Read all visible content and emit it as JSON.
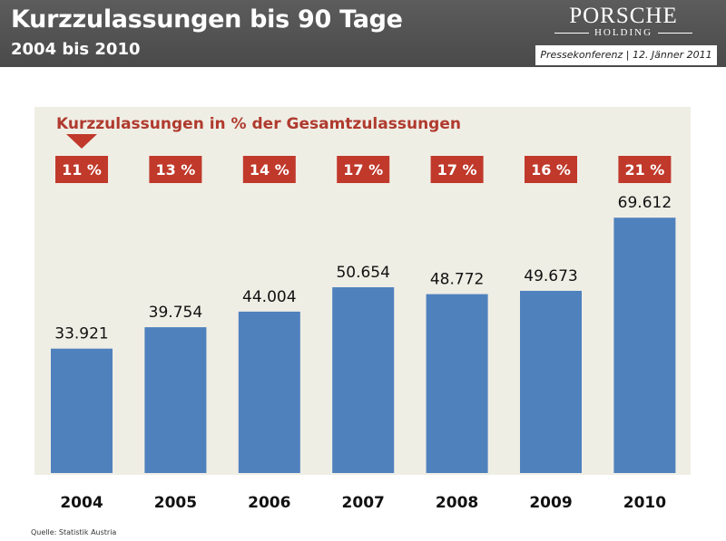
{
  "header": {
    "title": "Kurzzulassungen bis 90 Tage",
    "subtitle": "2004 bis 2010",
    "logo_main": "PORSCHE",
    "logo_sub": "HOLDING",
    "press_info": "Pressekonferenz | 12. Jänner 2011"
  },
  "colors": {
    "bar": "#4f81bd",
    "badge": "#c0392b",
    "header_bg": "#555555",
    "chart_bg": "#efeee5"
  },
  "chart_data": {
    "type": "bar",
    "categories": [
      "2004",
      "2005",
      "2006",
      "2007",
      "2008",
      "2009",
      "2010"
    ],
    "values": [
      33921,
      39754,
      44004,
      50654,
      48772,
      49673,
      69612
    ],
    "value_labels": [
      "33.921",
      "39.754",
      "44.004",
      "50.654",
      "48.772",
      "49.673",
      "69.612"
    ],
    "annotation": "Kurzzulassungen in % der Gesamtzulassungen",
    "percent_labels": [
      "11 %",
      "13 %",
      "14 %",
      "17 %",
      "17 %",
      "16 %",
      "21 %"
    ],
    "ylim": [
      0,
      84000
    ],
    "grid": false,
    "legend": "none"
  },
  "footer": {
    "source": "Quelle: Statistik Austria"
  }
}
